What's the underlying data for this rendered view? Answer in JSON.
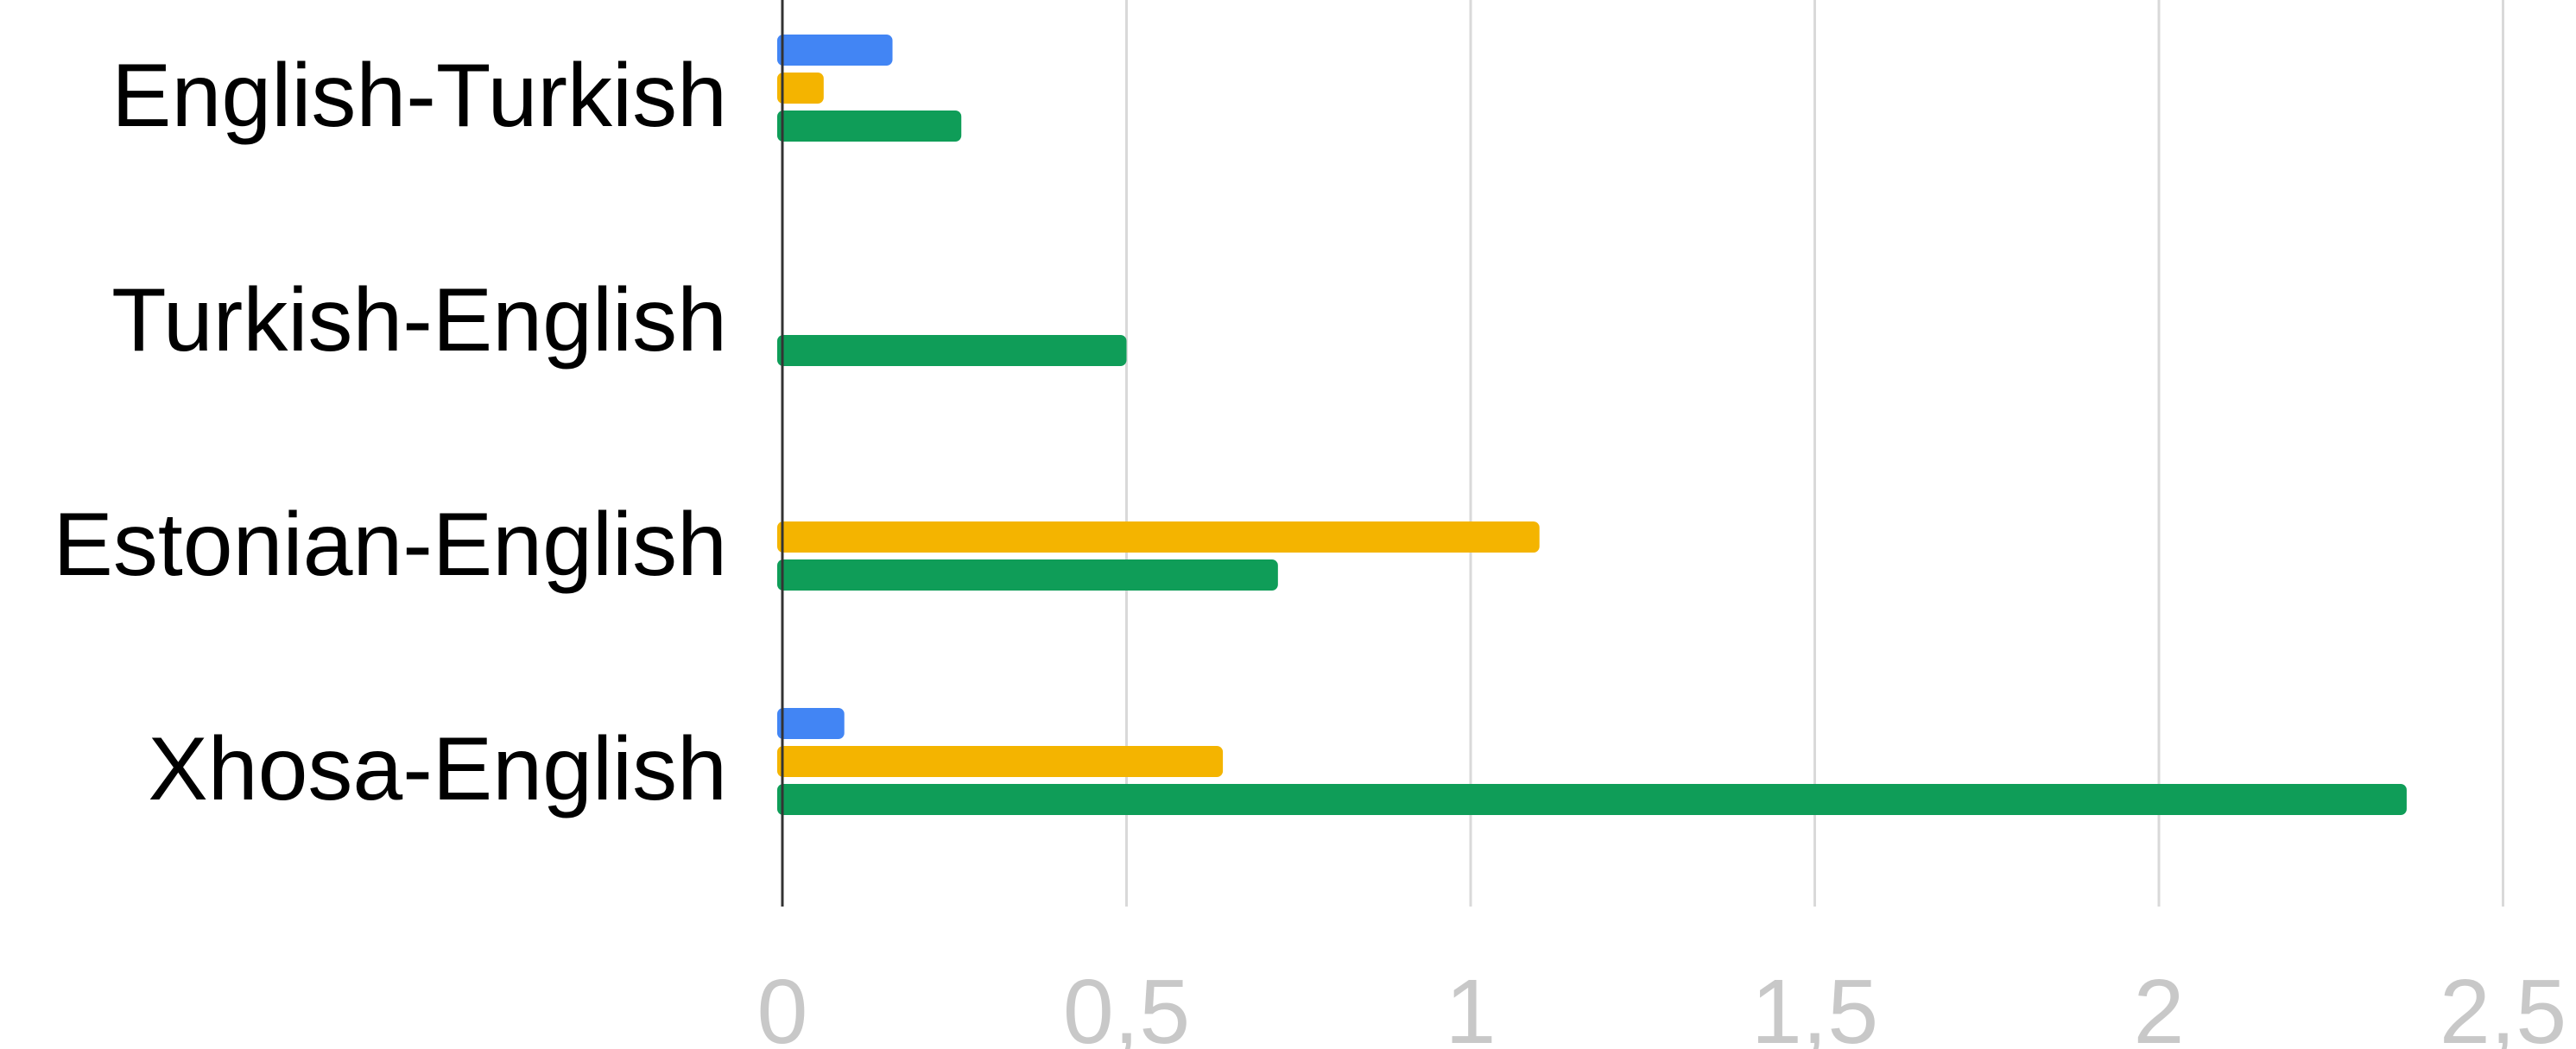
{
  "chart_data": {
    "type": "bar",
    "orientation": "horizontal",
    "categories": [
      "English-Turkish",
      "Turkish-English",
      "Estonian-English",
      "Xhosa-English"
    ],
    "series": [
      {
        "color": "#4285f4",
        "values": [
          0.16,
          0,
          0,
          0.09
        ]
      },
      {
        "color": "#f4b400",
        "values": [
          0.06,
          0,
          1.1,
          0.64
        ]
      },
      {
        "color": "#0f9d58",
        "values": [
          0.26,
          0.5,
          0.72,
          2.36
        ]
      }
    ],
    "xlim": [
      0,
      2.5
    ],
    "xticks": [
      0,
      0.5,
      1,
      1.5,
      2,
      2.5
    ],
    "xtick_labels": [
      "0",
      "0,5",
      "1",
      "1,5",
      "2",
      "2,5"
    ],
    "grid": true,
    "legend": "none"
  }
}
